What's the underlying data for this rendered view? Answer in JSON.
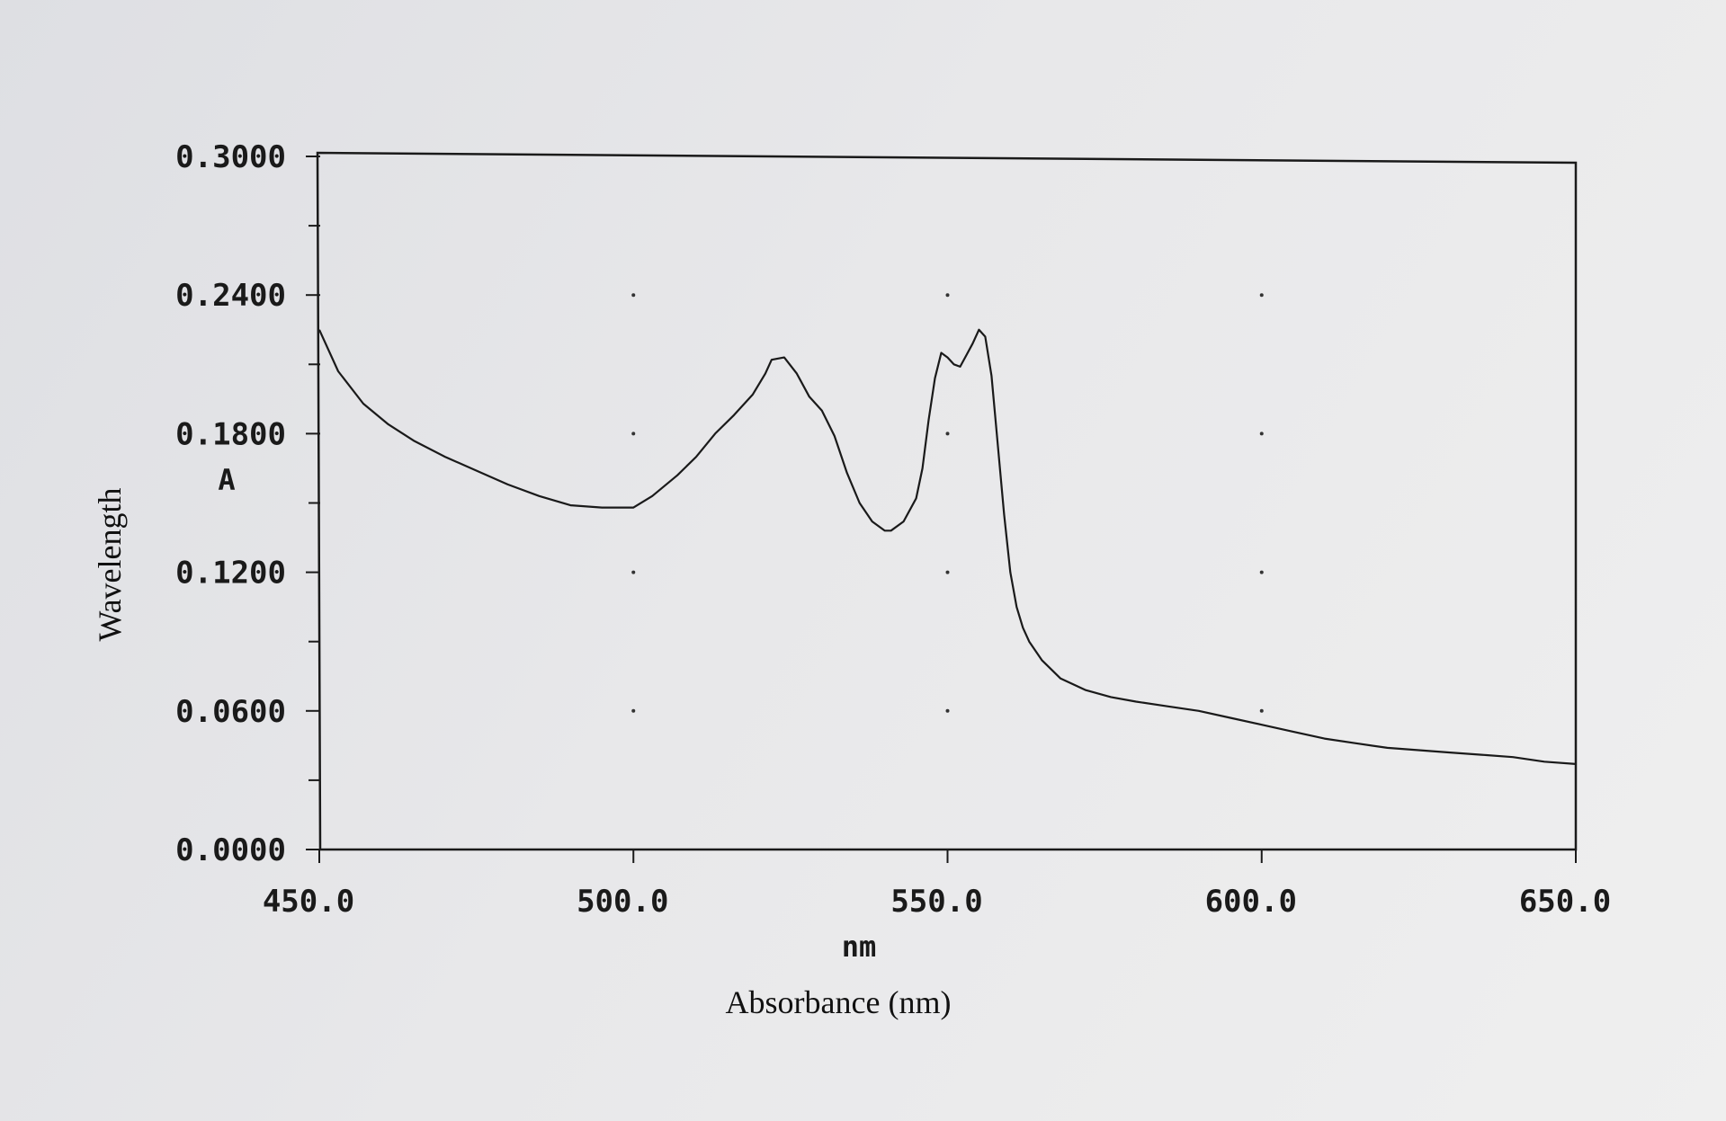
{
  "chart_data": {
    "type": "line",
    "xlabel": "Absorbance (nm)",
    "x_unit": "nm",
    "ylabel": "Wavelength",
    "y_unit": "A",
    "xlim": [
      450.0,
      650.0
    ],
    "ylim": [
      0.0,
      0.3
    ],
    "x_ticks": [
      "450.0",
      "500.0",
      "550.0",
      "600.0",
      "650.0"
    ],
    "y_ticks": [
      "0.0000",
      "0.0600",
      "0.1200",
      "0.1800",
      "0.2400",
      "0.3000"
    ],
    "grid": "dotted",
    "series": [
      {
        "x": [
          450,
          453,
          457,
          461,
          465,
          470,
          475,
          480,
          485,
          490,
          495,
          497,
          500,
          503,
          507,
          510,
          513,
          516,
          519,
          521,
          522,
          524,
          526,
          528,
          530,
          532,
          534,
          536,
          538,
          540,
          541,
          543,
          545,
          546,
          547,
          548,
          549,
          550,
          551,
          552,
          553,
          554,
          555,
          556,
          557,
          558,
          559,
          560,
          561,
          562,
          563,
          565,
          568,
          572,
          576,
          580,
          585,
          590,
          595,
          600,
          605,
          610,
          615,
          620,
          625,
          630,
          635,
          640,
          645,
          650
        ],
        "y": [
          0.225,
          0.207,
          0.193,
          0.184,
          0.177,
          0.17,
          0.164,
          0.158,
          0.153,
          0.149,
          0.148,
          0.148,
          0.148,
          0.153,
          0.162,
          0.17,
          0.18,
          0.188,
          0.197,
          0.206,
          0.212,
          0.213,
          0.206,
          0.196,
          0.19,
          0.179,
          0.163,
          0.15,
          0.142,
          0.138,
          0.138,
          0.142,
          0.152,
          0.165,
          0.186,
          0.204,
          0.215,
          0.213,
          0.21,
          0.209,
          0.214,
          0.219,
          0.225,
          0.222,
          0.205,
          0.175,
          0.145,
          0.12,
          0.105,
          0.096,
          0.09,
          0.082,
          0.074,
          0.069,
          0.066,
          0.064,
          0.062,
          0.06,
          0.057,
          0.054,
          0.051,
          0.048,
          0.046,
          0.044,
          0.043,
          0.042,
          0.041,
          0.04,
          0.038,
          0.037
        ]
      }
    ]
  }
}
